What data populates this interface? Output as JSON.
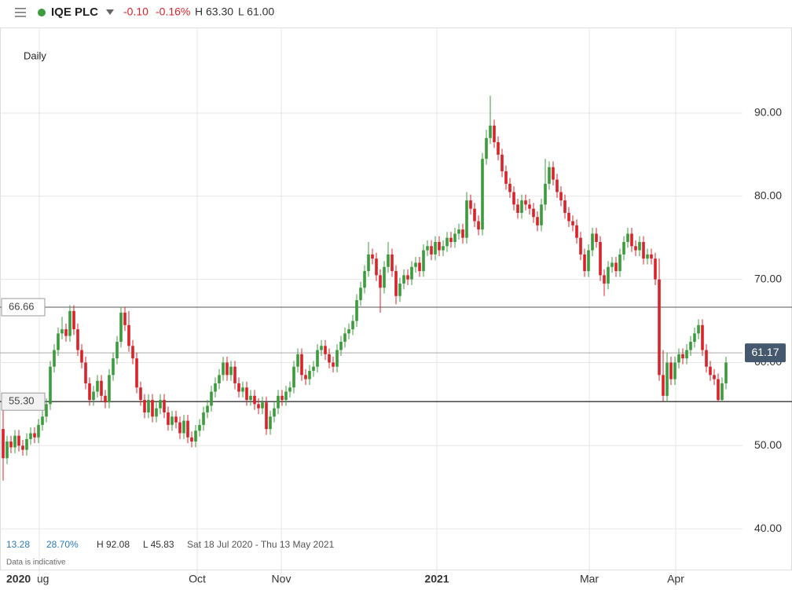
{
  "header": {
    "name": "IQE PLC",
    "change": "-0.10",
    "change_pct": "-0.16%",
    "high": "H 63.30",
    "low": "L 61.00"
  },
  "footer": {
    "change": "13.28",
    "change_pct": "28.70%",
    "high": "H 92.08",
    "low": "L 45.83",
    "range": "Sat 18 Jul 2020 - Thu 13 May 2021",
    "note": "Data is indicative"
  },
  "chart_data": {
    "type": "candlestick",
    "interval": "Daily",
    "up_color": "#3c9b3c",
    "down_color": "#d8232a",
    "ylim": [
      35.1,
      100.2
    ],
    "yticks": [
      {
        "value": 40,
        "label": "40.00"
      },
      {
        "value": 50,
        "label": "50.00"
      },
      {
        "value": 60,
        "label": "60.00"
      },
      {
        "value": 70,
        "label": "70.00"
      },
      {
        "value": 80,
        "label": "80.00"
      },
      {
        "value": 90,
        "label": "90.00"
      }
    ],
    "xlim": [
      -0.8,
      188.2
    ],
    "x_start_label": "2020",
    "xticks": [
      {
        "value": 9.2,
        "label": "Aug"
      },
      {
        "value": 49.4,
        "label": "Oct"
      },
      {
        "value": 70.8,
        "label": "Nov"
      },
      {
        "value": 110.4,
        "label": "2021"
      },
      {
        "value": 149.2,
        "label": "Mar"
      },
      {
        "value": 171.2,
        "label": "Apr"
      }
    ],
    "price_lines": [
      66.66,
      {
        "value": 55.3,
        "label": "55.30"
      }
    ],
    "last_price": 61.17,
    "candles": [
      [
        52.0,
        55.0,
        45.8,
        48.5
      ],
      [
        48.5,
        51.2,
        47.8,
        50.5
      ],
      [
        50.5,
        51.2,
        49.1,
        49.8
      ],
      [
        49.8,
        51.9,
        49.1,
        51.2
      ],
      [
        51.2,
        51.9,
        49.3,
        50.0
      ],
      [
        50.0,
        50.7,
        48.8,
        49.5
      ],
      [
        49.5,
        51.5,
        48.8,
        50.8
      ],
      [
        50.8,
        52.2,
        50.1,
        51.5
      ],
      [
        51.5,
        52.2,
        50.3,
        51.0
      ],
      [
        51.0,
        53.2,
        50.3,
        52.5
      ],
      [
        52.5,
        54.2,
        51.8,
        53.5
      ],
      [
        53.5,
        55.7,
        52.8,
        55.0
      ],
      [
        55.0,
        60.2,
        54.3,
        59.5
      ],
      [
        59.5,
        62.2,
        58.8,
        61.5
      ],
      [
        61.5,
        64.2,
        60.8,
        63.5
      ],
      [
        63.5,
        65.5,
        62.8,
        64.0
      ],
      [
        64.0,
        64.7,
        62.5,
        63.2
      ],
      [
        63.2,
        66.9,
        62.5,
        66.2
      ],
      [
        66.2,
        66.9,
        63.3,
        64.0
      ],
      [
        64.0,
        64.7,
        60.8,
        61.5
      ],
      [
        61.5,
        62.2,
        59.3,
        60.0
      ],
      [
        60.0,
        60.7,
        56.8,
        57.5
      ],
      [
        57.5,
        58.2,
        54.8,
        55.5
      ],
      [
        55.5,
        57.2,
        54.8,
        56.5
      ],
      [
        56.5,
        58.5,
        55.8,
        57.8
      ],
      [
        57.8,
        58.5,
        55.3,
        56.0
      ],
      [
        56.0,
        56.7,
        54.5,
        55.2
      ],
      [
        55.2,
        59.2,
        54.5,
        58.5
      ],
      [
        58.5,
        61.2,
        57.8,
        60.5
      ],
      [
        60.5,
        63.2,
        59.8,
        62.5
      ],
      [
        62.5,
        66.7,
        61.8,
        66.0
      ],
      [
        66.0,
        66.7,
        63.8,
        64.5
      ],
      [
        64.5,
        66.2,
        61.3,
        62.0
      ],
      [
        62.0,
        62.7,
        59.8,
        60.5
      ],
      [
        60.5,
        61.2,
        56.3,
        57.0
      ],
      [
        57.0,
        57.7,
        54.8,
        55.5
      ],
      [
        55.5,
        56.2,
        53.3,
        54.0
      ],
      [
        54.0,
        56.2,
        53.3,
        55.5
      ],
      [
        55.5,
        56.2,
        52.8,
        53.5
      ],
      [
        53.5,
        55.2,
        52.8,
        54.5
      ],
      [
        54.5,
        56.2,
        53.8,
        55.5
      ],
      [
        55.5,
        56.2,
        53.3,
        54.0
      ],
      [
        54.0,
        54.7,
        51.8,
        52.5
      ],
      [
        52.5,
        54.2,
        51.8,
        53.5
      ],
      [
        53.5,
        54.2,
        52.1,
        52.8
      ],
      [
        52.8,
        53.5,
        50.8,
        51.5
      ],
      [
        51.5,
        53.7,
        50.8,
        53.0
      ],
      [
        53.0,
        53.7,
        50.3,
        51.0
      ],
      [
        51.0,
        51.7,
        49.8,
        50.5
      ],
      [
        50.5,
        52.5,
        49.8,
        51.8
      ],
      [
        51.8,
        53.2,
        51.1,
        52.5
      ],
      [
        52.5,
        54.7,
        51.8,
        54.0
      ],
      [
        54.0,
        55.5,
        53.3,
        54.8
      ],
      [
        54.8,
        57.2,
        54.1,
        56.5
      ],
      [
        56.5,
        58.2,
        55.8,
        57.5
      ],
      [
        57.5,
        59.2,
        56.8,
        58.5
      ],
      [
        58.5,
        60.7,
        57.8,
        60.0
      ],
      [
        60.0,
        60.7,
        57.8,
        58.5
      ],
      [
        58.5,
        60.2,
        57.8,
        59.5
      ],
      [
        59.5,
        60.2,
        56.8,
        57.5
      ],
      [
        57.5,
        58.2,
        55.8,
        56.5
      ],
      [
        56.5,
        57.7,
        55.8,
        57.0
      ],
      [
        57.0,
        57.7,
        54.8,
        55.5
      ],
      [
        55.5,
        56.7,
        54.8,
        56.0
      ],
      [
        56.0,
        56.7,
        54.3,
        55.0
      ],
      [
        55.0,
        55.7,
        53.8,
        54.5
      ],
      [
        54.5,
        55.9,
        53.8,
        55.2
      ],
      [
        55.2,
        55.9,
        51.3,
        52.0
      ],
      [
        52.0,
        54.2,
        51.3,
        53.5
      ],
      [
        53.5,
        55.2,
        52.8,
        54.5
      ],
      [
        54.5,
        56.7,
        53.8,
        56.0
      ],
      [
        56.0,
        56.7,
        54.8,
        55.5
      ],
      [
        55.5,
        57.2,
        54.8,
        56.5
      ],
      [
        56.5,
        57.7,
        55.8,
        57.0
      ],
      [
        57.0,
        60.2,
        56.3,
        59.5
      ],
      [
        59.5,
        61.7,
        58.8,
        61.0
      ],
      [
        61.0,
        61.7,
        57.8,
        58.5
      ],
      [
        58.5,
        59.2,
        57.3,
        58.0
      ],
      [
        58.0,
        59.7,
        57.3,
        59.0
      ],
      [
        59.0,
        60.2,
        58.3,
        59.5
      ],
      [
        59.5,
        62.2,
        58.8,
        61.5
      ],
      [
        61.5,
        62.7,
        60.8,
        62.0
      ],
      [
        62.0,
        62.7,
        60.3,
        61.0
      ],
      [
        61.0,
        61.7,
        59.3,
        60.0
      ],
      [
        60.0,
        60.7,
        58.8,
        59.5
      ],
      [
        59.5,
        62.2,
        58.8,
        61.5
      ],
      [
        61.5,
        63.2,
        60.8,
        62.5
      ],
      [
        62.5,
        64.2,
        61.8,
        63.5
      ],
      [
        63.5,
        64.7,
        62.8,
        64.0
      ],
      [
        64.0,
        65.7,
        63.3,
        65.0
      ],
      [
        65.0,
        68.2,
        64.3,
        67.5
      ],
      [
        67.5,
        69.7,
        66.8,
        69.0
      ],
      [
        69.0,
        71.7,
        68.3,
        71.0
      ],
      [
        71.0,
        74.5,
        70.3,
        73.0
      ],
      [
        73.0,
        73.7,
        71.8,
        72.5
      ],
      [
        72.5,
        73.2,
        69.8,
        70.5
      ],
      [
        70.5,
        71.2,
        66.0,
        69.0
      ],
      [
        69.0,
        72.2,
        68.3,
        71.5
      ],
      [
        71.5,
        74.5,
        70.8,
        73.0
      ],
      [
        73.0,
        73.7,
        70.3,
        71.0
      ],
      [
        71.0,
        71.7,
        67.0,
        68.0
      ],
      [
        68.0,
        70.2,
        67.3,
        69.5
      ],
      [
        69.5,
        71.2,
        68.8,
        70.5
      ],
      [
        70.5,
        71.2,
        69.3,
        70.0
      ],
      [
        70.0,
        72.2,
        69.3,
        71.5
      ],
      [
        71.5,
        72.7,
        70.8,
        72.0
      ],
      [
        72.0,
        72.7,
        70.3,
        71.0
      ],
      [
        71.0,
        74.2,
        70.3,
        73.5
      ],
      [
        73.5,
        74.7,
        72.8,
        74.0
      ],
      [
        74.0,
        74.7,
        72.3,
        73.0
      ],
      [
        73.0,
        75.2,
        72.3,
        74.5
      ],
      [
        74.5,
        75.2,
        72.8,
        73.5
      ],
      [
        73.5,
        74.7,
        72.8,
        74.0
      ],
      [
        74.0,
        75.7,
        73.3,
        75.0
      ],
      [
        75.0,
        75.7,
        73.8,
        74.5
      ],
      [
        74.5,
        76.2,
        73.8,
        75.5
      ],
      [
        75.5,
        76.7,
        74.8,
        76.0
      ],
      [
        76.0,
        76.7,
        74.3,
        75.0
      ],
      [
        75.0,
        80.5,
        74.3,
        79.5
      ],
      [
        79.5,
        80.2,
        77.8,
        78.5
      ],
      [
        78.5,
        79.2,
        76.3,
        77.0
      ],
      [
        77.0,
        77.7,
        75.3,
        76.0
      ],
      [
        76.0,
        85.2,
        75.3,
        84.5
      ],
      [
        84.5,
        88.0,
        83.8,
        87.0
      ],
      [
        87.0,
        92.1,
        86.3,
        88.5
      ],
      [
        88.5,
        89.2,
        85.8,
        86.5
      ],
      [
        86.5,
        87.2,
        84.3,
        85.0
      ],
      [
        85.0,
        85.7,
        82.3,
        83.0
      ],
      [
        83.0,
        83.7,
        80.8,
        81.5
      ],
      [
        81.5,
        82.2,
        79.8,
        80.5
      ],
      [
        80.5,
        81.2,
        78.3,
        79.0
      ],
      [
        79.0,
        79.7,
        77.3,
        78.0
      ],
      [
        78.0,
        80.2,
        77.3,
        79.5
      ],
      [
        79.5,
        80.2,
        78.3,
        79.0
      ],
      [
        79.0,
        79.7,
        77.8,
        78.5
      ],
      [
        78.5,
        79.2,
        76.8,
        77.5
      ],
      [
        77.5,
        78.2,
        75.8,
        76.5
      ],
      [
        76.5,
        79.7,
        75.8,
        79.0
      ],
      [
        79.0,
        84.5,
        78.3,
        81.5
      ],
      [
        81.5,
        84.2,
        80.8,
        83.5
      ],
      [
        83.5,
        84.2,
        81.3,
        82.0
      ],
      [
        82.0,
        82.7,
        79.8,
        80.5
      ],
      [
        80.5,
        81.2,
        78.8,
        79.5
      ],
      [
        79.5,
        80.2,
        77.3,
        78.0
      ],
      [
        78.0,
        78.7,
        76.3,
        77.0
      ],
      [
        77.0,
        77.7,
        75.8,
        76.5
      ],
      [
        76.5,
        77.2,
        74.3,
        75.0
      ],
      [
        75.0,
        75.7,
        72.3,
        73.0
      ],
      [
        73.0,
        73.7,
        70.3,
        71.0
      ],
      [
        71.0,
        74.2,
        70.3,
        73.5
      ],
      [
        73.5,
        76.2,
        72.8,
        75.5
      ],
      [
        75.5,
        76.2,
        73.8,
        74.5
      ],
      [
        74.5,
        75.2,
        69.8,
        70.5
      ],
      [
        70.5,
        71.2,
        68.0,
        69.5
      ],
      [
        69.5,
        72.2,
        68.8,
        71.5
      ],
      [
        71.5,
        72.7,
        70.8,
        72.0
      ],
      [
        72.0,
        72.7,
        70.3,
        71.0
      ],
      [
        71.0,
        73.7,
        70.3,
        73.0
      ],
      [
        73.0,
        75.2,
        72.3,
        74.5
      ],
      [
        74.5,
        76.2,
        73.8,
        75.5
      ],
      [
        75.5,
        76.2,
        73.3,
        74.0
      ],
      [
        74.0,
        74.7,
        72.8,
        73.5
      ],
      [
        73.5,
        75.2,
        72.8,
        74.5
      ],
      [
        74.5,
        75.2,
        71.8,
        72.5
      ],
      [
        72.5,
        73.7,
        71.8,
        73.0
      ],
      [
        73.0,
        73.7,
        71.8,
        72.5
      ],
      [
        72.5,
        73.2,
        69.3,
        70.0
      ],
      [
        70.0,
        72.5,
        57.8,
        58.5
      ],
      [
        58.5,
        61.5,
        55.3,
        56.0
      ],
      [
        56.0,
        61.2,
        55.3,
        60.0
      ],
      [
        60.0,
        60.7,
        57.3,
        58.0
      ],
      [
        58.0,
        60.7,
        57.3,
        60.0
      ],
      [
        60.0,
        61.7,
        59.3,
        61.0
      ],
      [
        61.0,
        61.7,
        59.8,
        60.5
      ],
      [
        60.5,
        62.2,
        59.8,
        61.5
      ],
      [
        61.5,
        63.2,
        60.8,
        62.5
      ],
      [
        62.5,
        64.2,
        61.8,
        63.5
      ],
      [
        63.5,
        65.2,
        62.8,
        64.5
      ],
      [
        64.5,
        65.2,
        60.8,
        61.5
      ],
      [
        61.5,
        62.2,
        58.8,
        59.5
      ],
      [
        59.5,
        60.2,
        57.8,
        58.5
      ],
      [
        58.5,
        59.2,
        57.3,
        58.0
      ],
      [
        58.0,
        58.7,
        55.3,
        55.5
      ],
      [
        55.5,
        58.2,
        55.3,
        57.5
      ],
      [
        57.5,
        60.7,
        56.8,
        60.0
      ]
    ]
  }
}
